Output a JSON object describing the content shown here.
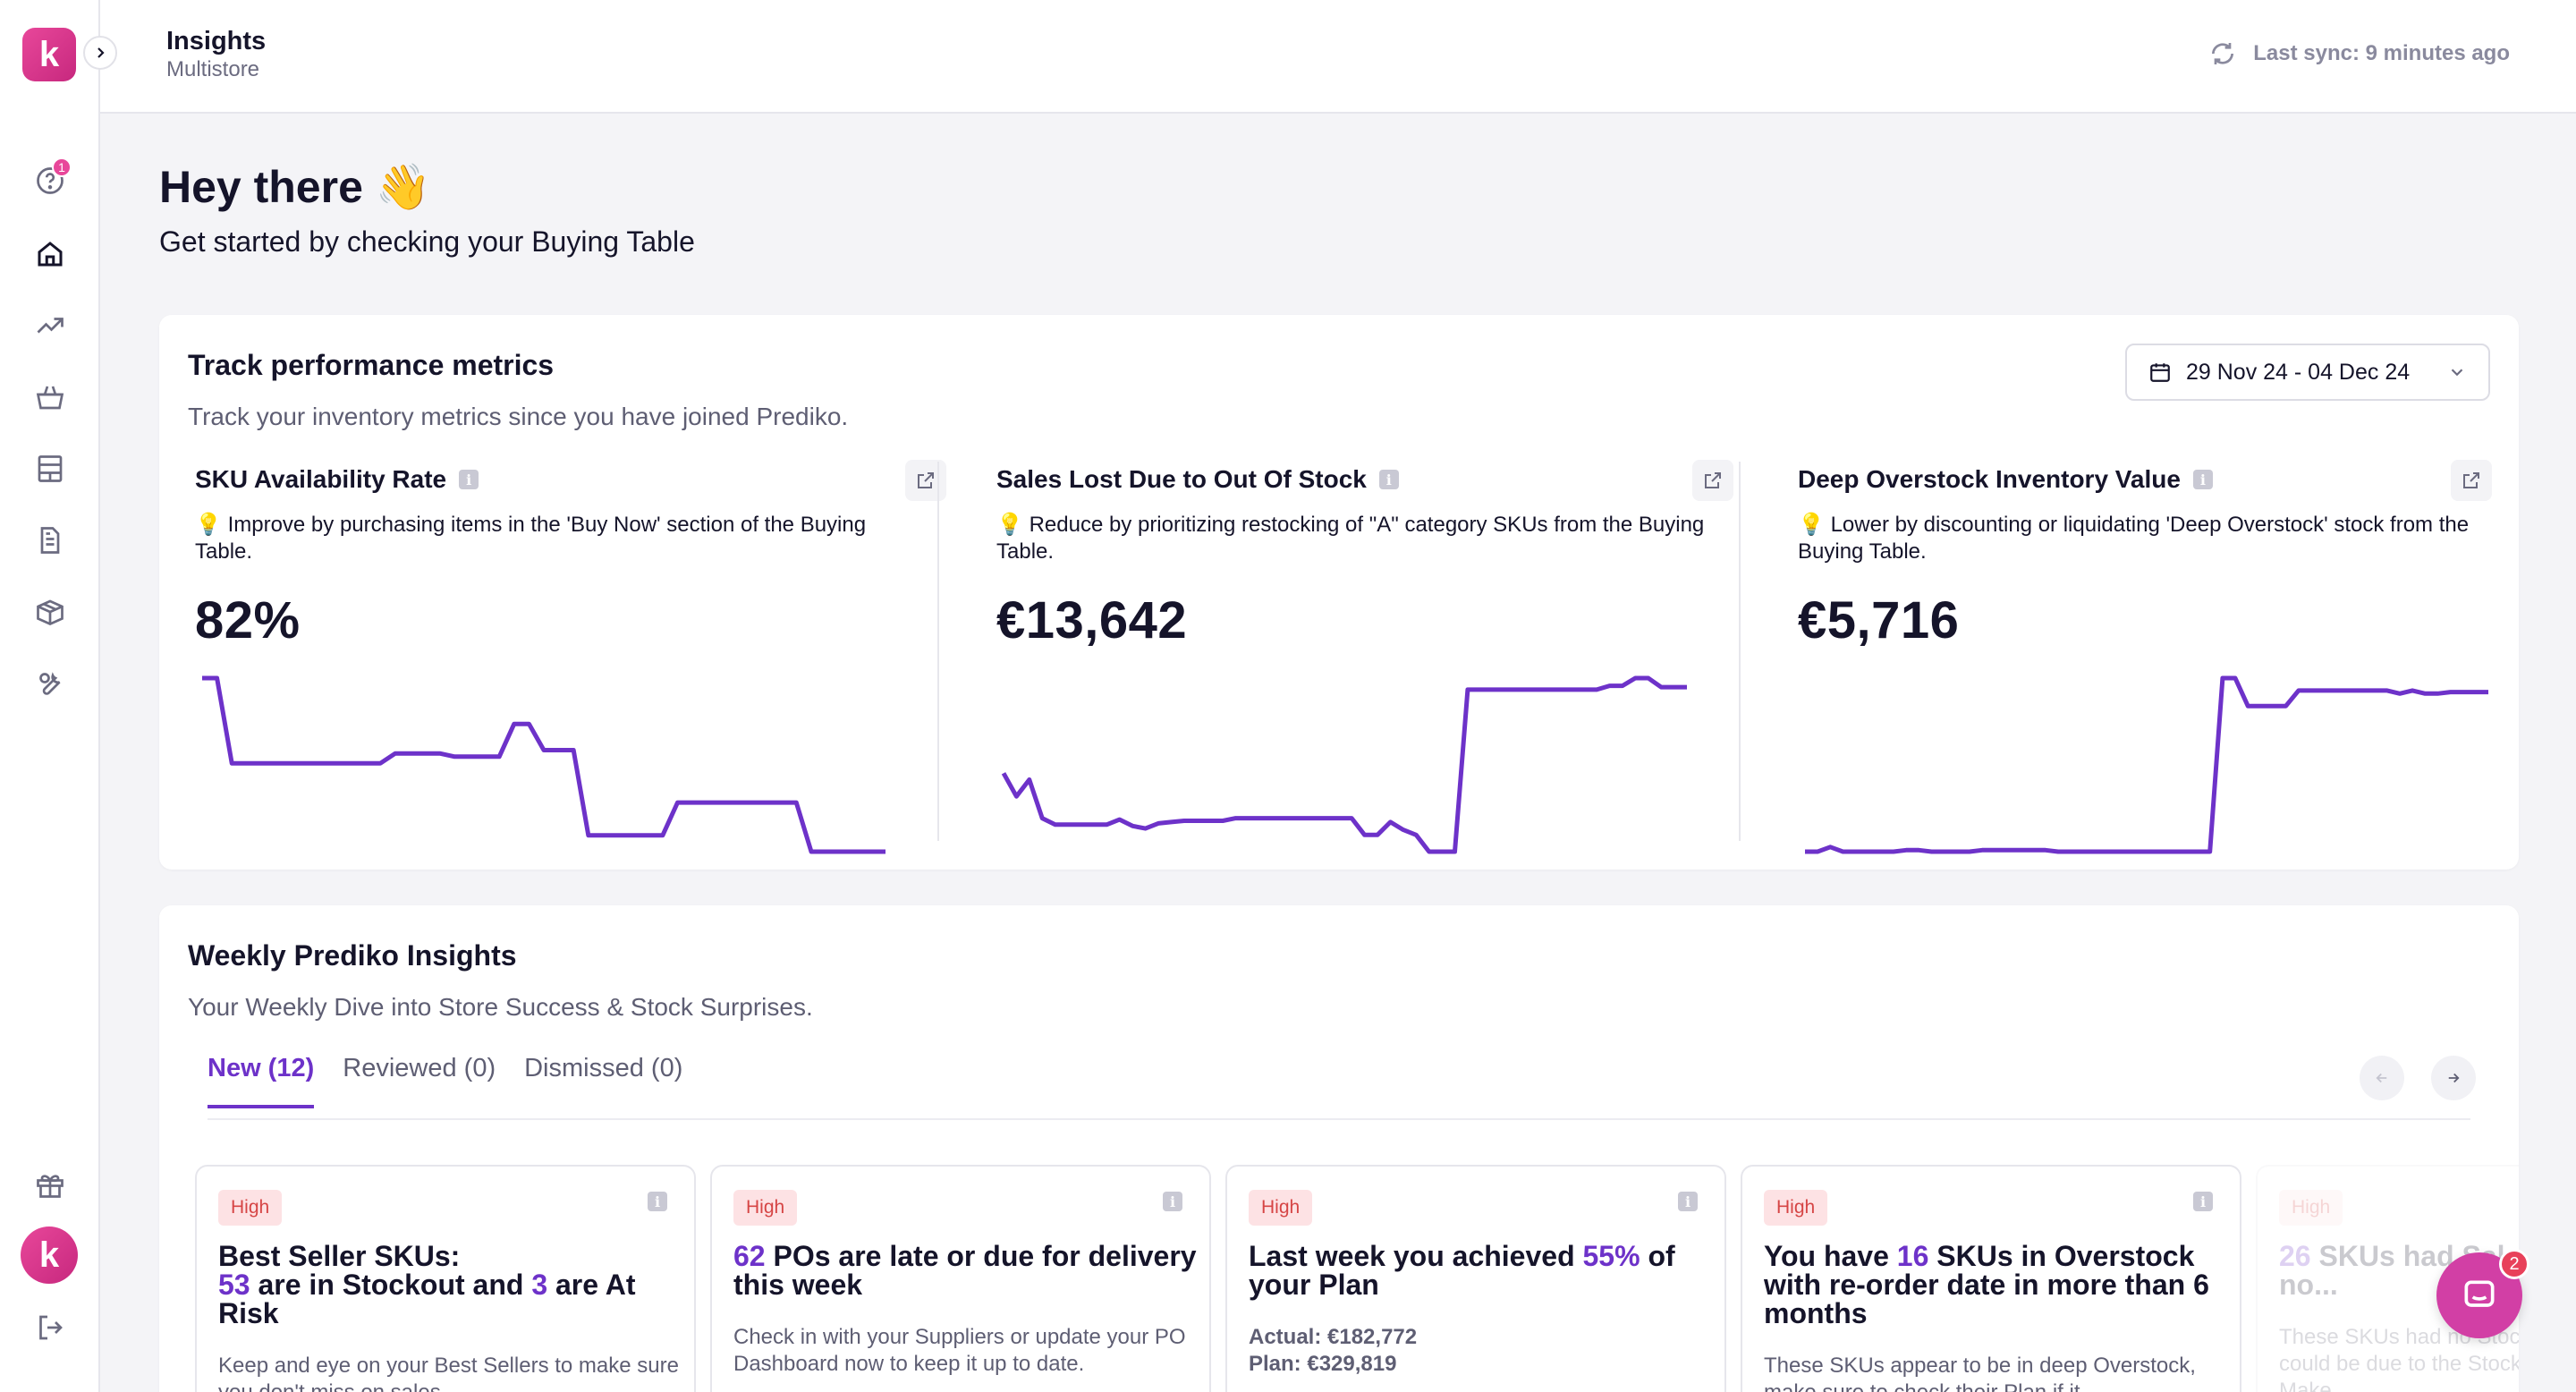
{
  "brand": {
    "logo_letter": "k",
    "accent": "#6d32c9",
    "brand_pink": "#d8348b"
  },
  "sidebar": {
    "items": [
      {
        "name": "help-icon",
        "badge": "1"
      },
      {
        "name": "home-icon"
      },
      {
        "name": "trend-icon"
      },
      {
        "name": "basket-icon"
      },
      {
        "name": "table-icon"
      },
      {
        "name": "document-icon"
      },
      {
        "name": "box-icon"
      },
      {
        "name": "wrench-icon"
      }
    ],
    "bottom": [
      {
        "name": "gift-icon"
      },
      {
        "name": "avatar",
        "letter": "k"
      },
      {
        "name": "logout-icon"
      }
    ]
  },
  "header": {
    "title": "Insights",
    "subtitle": "Multistore",
    "sync": "Last sync: 9 minutes ago"
  },
  "greeting": {
    "title": "Hey there 👋",
    "subtitle": "Get started by checking your Buying Table"
  },
  "performance": {
    "title": "Track performance metrics",
    "subtitle": "Track your inventory metrics since you have joined Prediko.",
    "date_range": "29 Nov 24 - 04 Dec 24",
    "metrics": [
      {
        "title": "SKU Availability Rate",
        "tip_icon": "💡",
        "tip": "Improve by purchasing items in the 'Buy Now' section of the Buying Table.",
        "value": "82%",
        "series": [
          98,
          98,
          72,
          72,
          72,
          72,
          72,
          72,
          72,
          72,
          72,
          72,
          72,
          75,
          75,
          75,
          75,
          74,
          74,
          74,
          74,
          84,
          84,
          76,
          76,
          76,
          50,
          50,
          50,
          50,
          50,
          50,
          60,
          60,
          60,
          60,
          60,
          60,
          60,
          60,
          60,
          45,
          45,
          45,
          45,
          45,
          45
        ]
      },
      {
        "title": "Sales Lost Due to Out Of Stock",
        "tip_icon": "💡",
        "tip": "Reduce by prioritizing restocking of \"A\" category SKUs from the Buying Table.",
        "value": "€13,642",
        "series": [
          10000,
          8200,
          9500,
          6500,
          6000,
          6000,
          6000,
          6000,
          6000,
          6400,
          5900,
          5700,
          6100,
          6200,
          6300,
          6300,
          6300,
          6300,
          6500,
          6500,
          6500,
          6500,
          6500,
          6500,
          6500,
          6500,
          6500,
          6500,
          5200,
          5200,
          6200,
          5600,
          5200,
          3900,
          3900,
          3900,
          16500,
          16500,
          16500,
          16500,
          16500,
          16500,
          16500,
          16500,
          16500,
          16500,
          16500,
          16800,
          16800,
          17400,
          17400,
          16700,
          16700,
          16700
        ]
      },
      {
        "title": "Deep Overstock Inventory Value",
        "tip_icon": "💡",
        "tip": "Lower by discounting or liquidating 'Deep Overstock' stock from the Buying Table.",
        "value": "€5,716",
        "series": [
          400,
          400,
          550,
          400,
          400,
          400,
          400,
          400,
          450,
          450,
          400,
          400,
          400,
          400,
          450,
          450,
          450,
          450,
          450,
          450,
          400,
          400,
          400,
          400,
          400,
          400,
          400,
          400,
          400,
          400,
          400,
          400,
          400,
          6000,
          6000,
          5100,
          5100,
          5100,
          5100,
          5600,
          5600,
          5600,
          5600,
          5600,
          5600,
          5600,
          5600,
          5500,
          5600,
          5500,
          5500,
          5550,
          5550,
          5550,
          5550
        ]
      }
    ]
  },
  "weekly": {
    "title": "Weekly Prediko Insights",
    "subtitle": "Your Weekly Dive into Store Success & Stock Surprises.",
    "tabs": [
      "New (12)",
      "Reviewed (0)",
      "Dismissed (0)"
    ],
    "cards": [
      {
        "priority": "High",
        "head_prefix": "Best Seller SKUs:",
        "head_num1": "53",
        "head_mid": " are in Stockout and ",
        "head_num2": "3",
        "head_suffix": " are At Risk",
        "body": "Keep and eye on your Best Sellers to make sure you don't miss on sales."
      },
      {
        "priority": "High",
        "head_num1": "62",
        "head_suffix": " POs are late or due for delivery this week",
        "body": "Check in with your Suppliers or update your PO Dashboard now to keep it up to date."
      },
      {
        "priority": "High",
        "head_prefix": "Last week you achieved ",
        "head_num1": "55%",
        "head_suffix": " of your Plan",
        "actual": "Actual: €182,772",
        "plan": "Plan: €329,819"
      },
      {
        "priority": "High",
        "head_prefix": "You have ",
        "head_num1": "16",
        "head_suffix": " SKUs in Overstock with re-order date in more than 6 months",
        "body": "These SKUs appear to be in deep Overstock, make sure to check their Plan if it"
      },
      {
        "priority": "High",
        "head_num1": "26",
        "head_suffix": " SKUs had Sales but there was no...",
        "body": "These SKUs had no Stock but some Sales. This could be due to the Stock not being up to date. Make"
      }
    ]
  },
  "chat": {
    "badge": "2"
  }
}
